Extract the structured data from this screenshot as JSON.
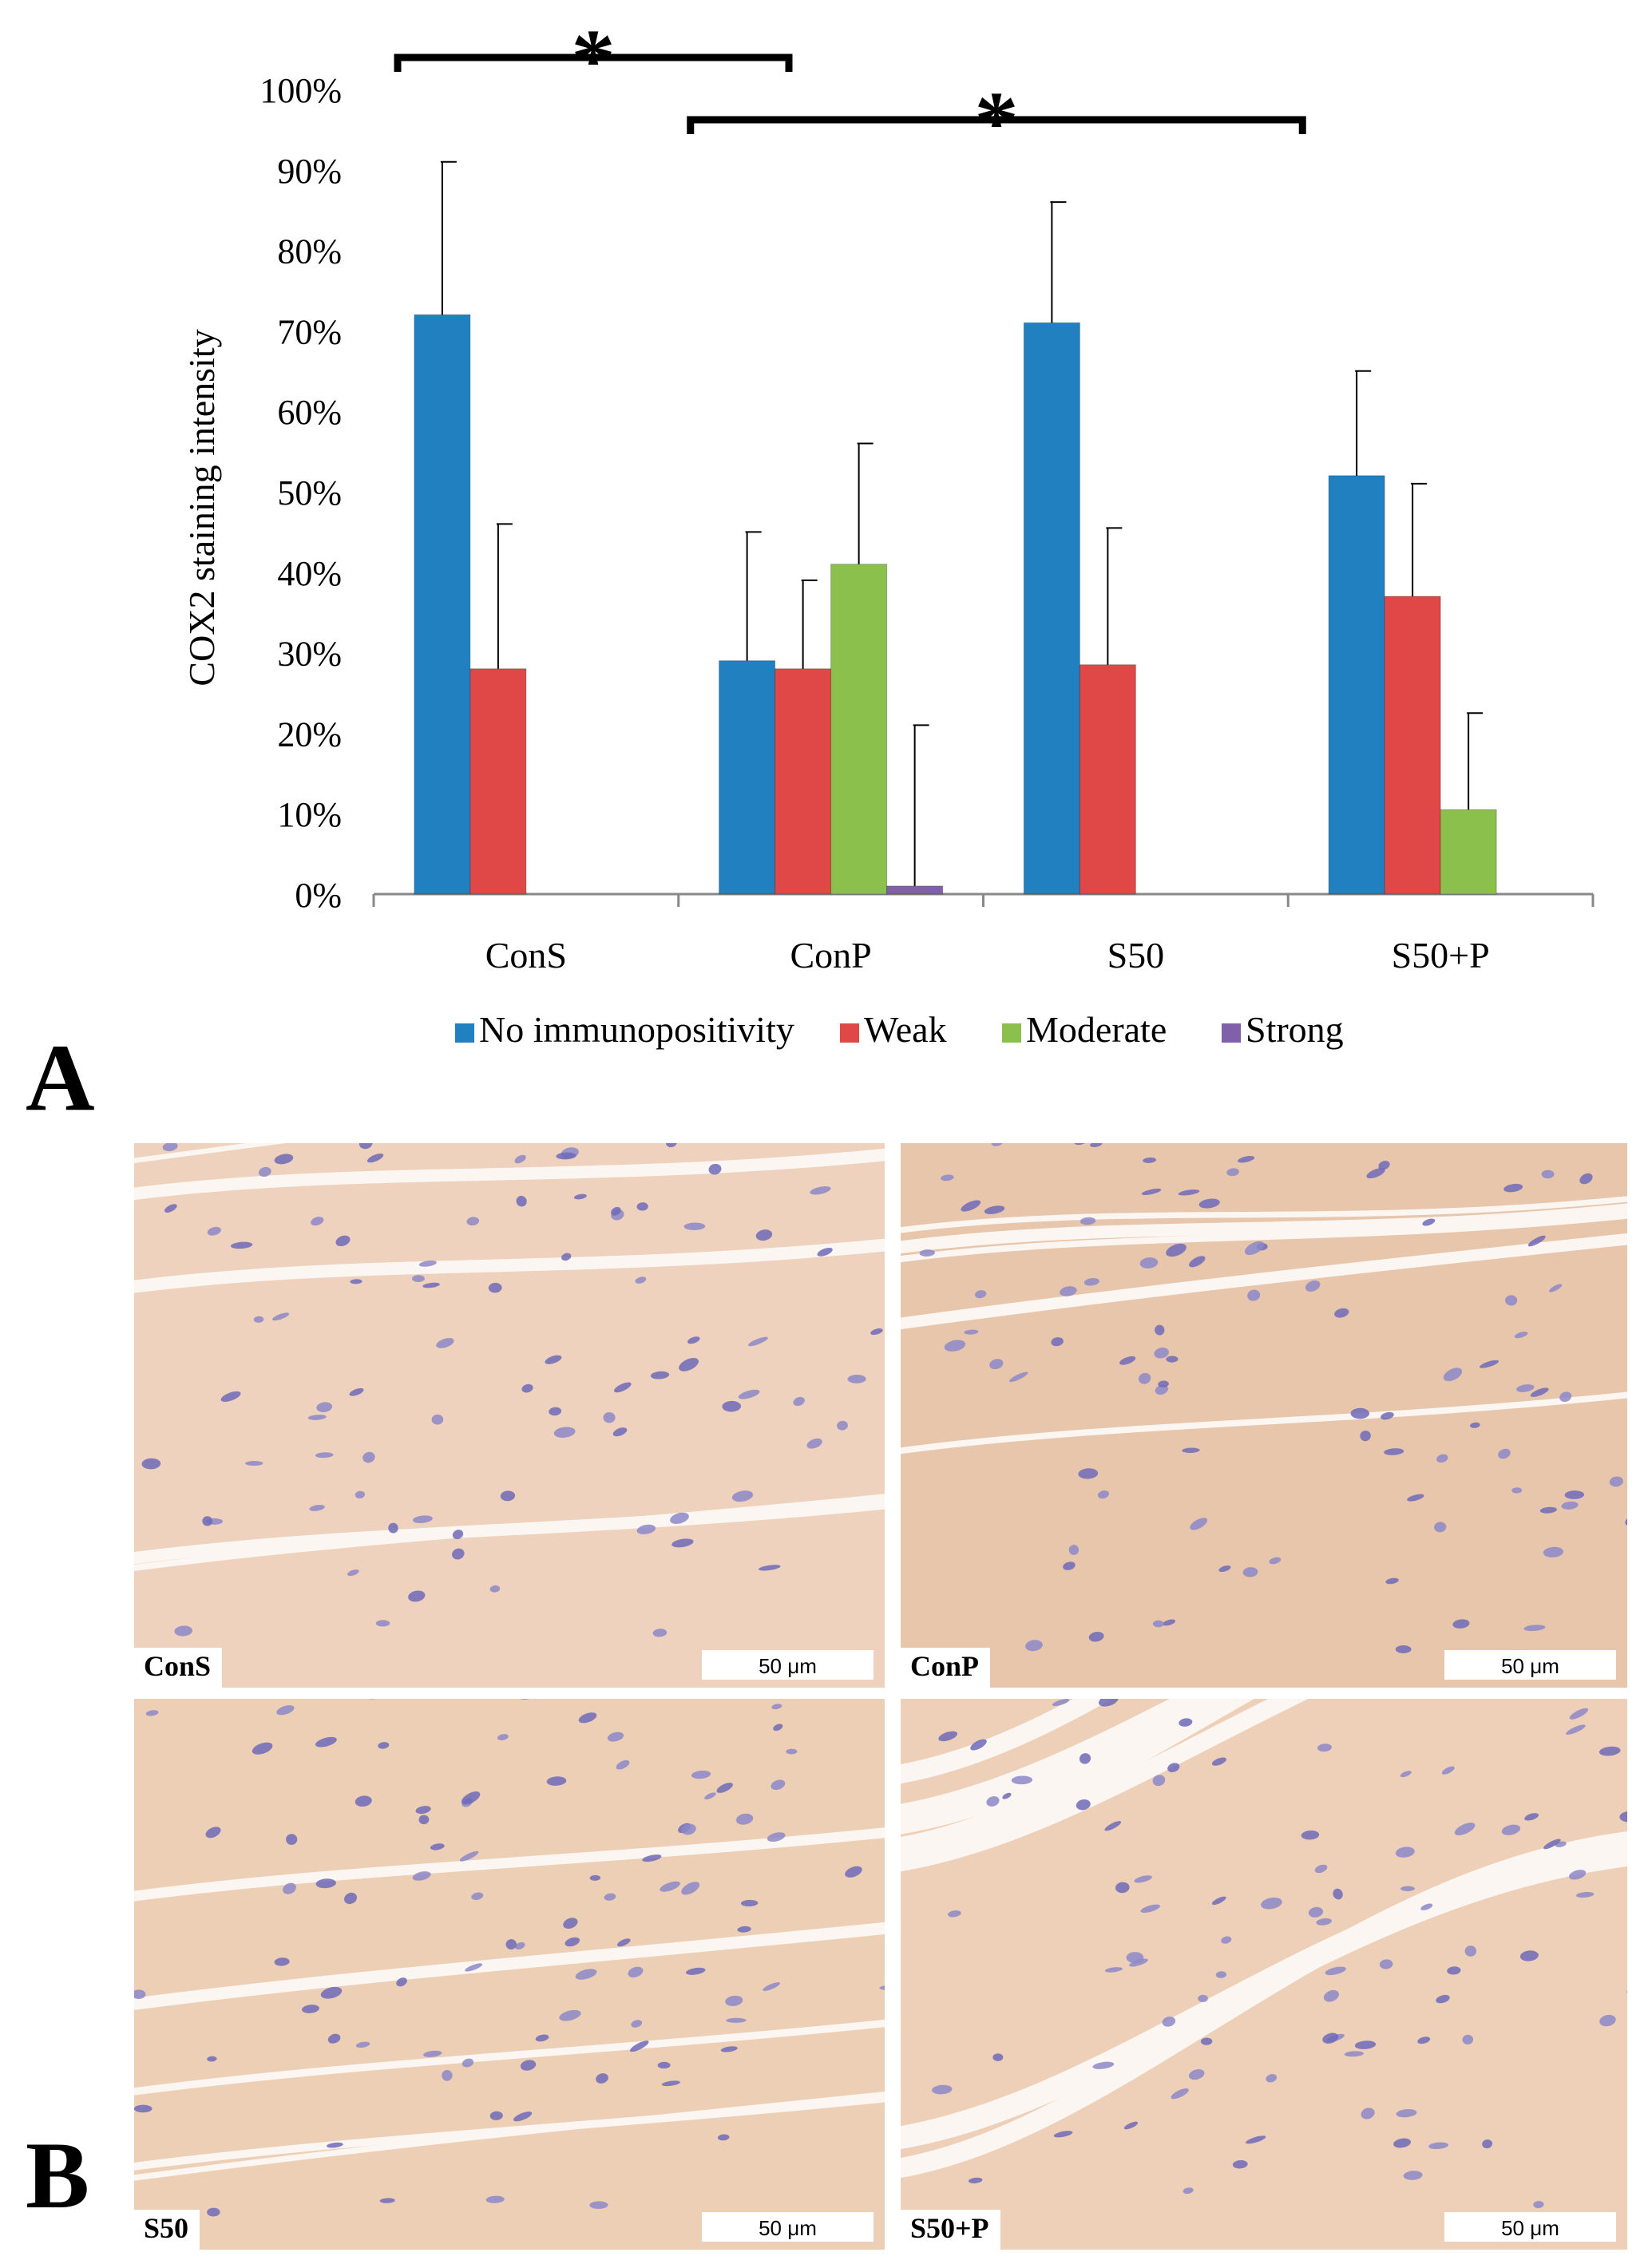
{
  "chart_data": {
    "type": "bar",
    "ylabel": "COX2 staining intensity",
    "xlabel": "",
    "ylim": [
      0,
      100
    ],
    "yticks": [
      "0%",
      "10%",
      "20%",
      "30%",
      "40%",
      "50%",
      "60%",
      "70%",
      "80%",
      "90%",
      "100%"
    ],
    "categories": [
      "ConS",
      "ConP",
      "S50",
      "S50+P"
    ],
    "legend_position": "bottom",
    "grid": false,
    "series": [
      {
        "name": "No immunopositivity",
        "color": "#2080C0",
        "values": [
          72,
          29,
          71,
          52
        ],
        "errors": [
          19,
          16,
          15,
          13
        ]
      },
      {
        "name": "Weak",
        "color": "#E04848",
        "values": [
          28,
          28,
          28.5,
          37
        ],
        "errors": [
          18,
          11,
          17,
          14
        ]
      },
      {
        "name": "Moderate",
        "color": "#8CC04C",
        "values": [
          0,
          41,
          0,
          10.5
        ],
        "errors": [
          0,
          15,
          0,
          12
        ]
      },
      {
        "name": "Strong",
        "color": "#8060A8",
        "values": [
          0,
          1,
          0,
          0
        ],
        "errors": [
          0,
          20,
          0,
          0
        ]
      }
    ],
    "significance": [
      {
        "from": "ConS",
        "to": "ConP",
        "label": "*"
      },
      {
        "from": "ConP",
        "to": "S50+P",
        "label": "*"
      }
    ]
  },
  "panels": {
    "a_label": "A",
    "b_label": "B"
  },
  "micrographs": [
    {
      "label": "ConS",
      "scale": "50 μm",
      "tone": "#EED2BE"
    },
    {
      "label": "ConP",
      "scale": "50 μm",
      "tone": "#E8C6AC"
    },
    {
      "label": "S50",
      "scale": "50 μm",
      "tone": "#EDCFB6"
    },
    {
      "label": "S50+P",
      "scale": "50 μm",
      "tone": "#EECFB8"
    }
  ]
}
